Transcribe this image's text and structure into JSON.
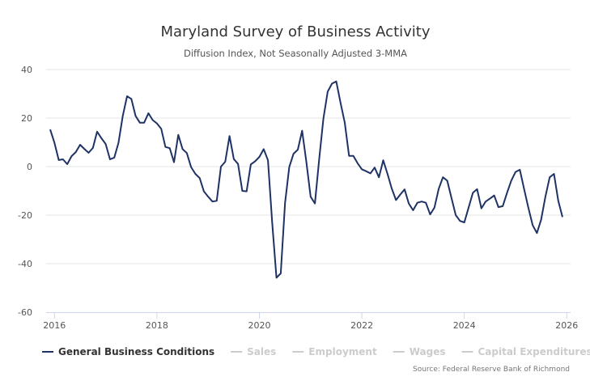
{
  "chart_data": {
    "type": "line",
    "title": "Maryland Survey of Business Activity",
    "subtitle": "Diffusion Index, Not Seasonally Adjusted 3-MMA",
    "xlabel": "",
    "ylabel": "",
    "ylim": [
      -60,
      40
    ],
    "yticks": [
      40,
      20,
      0,
      -20,
      -40,
      -60
    ],
    "xlim": [
      "2015-12",
      "2025-12"
    ],
    "xticks": [
      "2016",
      "2018",
      "2020",
      "2022",
      "2024",
      "2026"
    ],
    "grid": true,
    "x_start": "2015-12",
    "x_frequency": "monthly",
    "series": [
      {
        "name": "General Business Conditions",
        "color": "#1f3264",
        "visible": true,
        "values": [
          15.3,
          9.8,
          2.7,
          3,
          1,
          4.3,
          6,
          9,
          7.3,
          5.7,
          7.7,
          14.4,
          11.7,
          9.3,
          3,
          3.7,
          9.8,
          20.9,
          29,
          27.9,
          20.9,
          18.1,
          18.1,
          22,
          19.2,
          17.8,
          15.6,
          8.1,
          7.6,
          1.8,
          13.1,
          7.2,
          5.6,
          -0.2,
          -3,
          -4.7,
          -10.2,
          -12.4,
          -14.4,
          -14.1,
          0,
          2,
          12.6,
          3.1,
          1.1,
          -10,
          -10.2,
          0.9,
          2.2,
          4,
          7.2,
          2.6,
          -23,
          -45.8,
          -44,
          -15,
          -0.2,
          5.3,
          7,
          14.8,
          2,
          -12.4,
          -15.2,
          3.1,
          19.8,
          30.9,
          34.2,
          35.1,
          26.4,
          18.1,
          4.4,
          4.4,
          1.4,
          -1.1,
          -1.9,
          -2.8,
          -0.4,
          -4.4,
          2.6,
          -3,
          -9,
          -13.8,
          -11.5,
          -9.4,
          -15.2,
          -18,
          -14.9,
          -14.4,
          -14.9,
          -19.7,
          -16.9,
          -9.1,
          -4.4,
          -5.8,
          -13,
          -20,
          -22.4,
          -23,
          -16.9,
          -10.8,
          -9.3,
          -17.2,
          -14.4,
          -13.2,
          -11.9,
          -16.7,
          -16.3,
          -10.8,
          -5.8,
          -2.2,
          -1.3,
          -9.1,
          -16.9,
          -24.1,
          -27.4,
          -21.9,
          -12.4,
          -4.4,
          -3,
          -14.1,
          -20.8
        ]
      },
      {
        "name": "Sales",
        "color": "#cccccc",
        "visible": false,
        "values": []
      },
      {
        "name": "Employment",
        "color": "#cccccc",
        "visible": false,
        "values": []
      },
      {
        "name": "Wages",
        "color": "#cccccc",
        "visible": false,
        "values": []
      },
      {
        "name": "Capital Expenditures",
        "color": "#cccccc",
        "visible": false,
        "values": []
      }
    ],
    "legend": "bottom-left",
    "source": "Source: Federal Reserve Bank of Richmond"
  },
  "colors": {
    "active_legend_text": "#333333",
    "inactive_legend": "#cccccc",
    "grid": "#e6e6e6",
    "axis": "#ccd6eb"
  }
}
